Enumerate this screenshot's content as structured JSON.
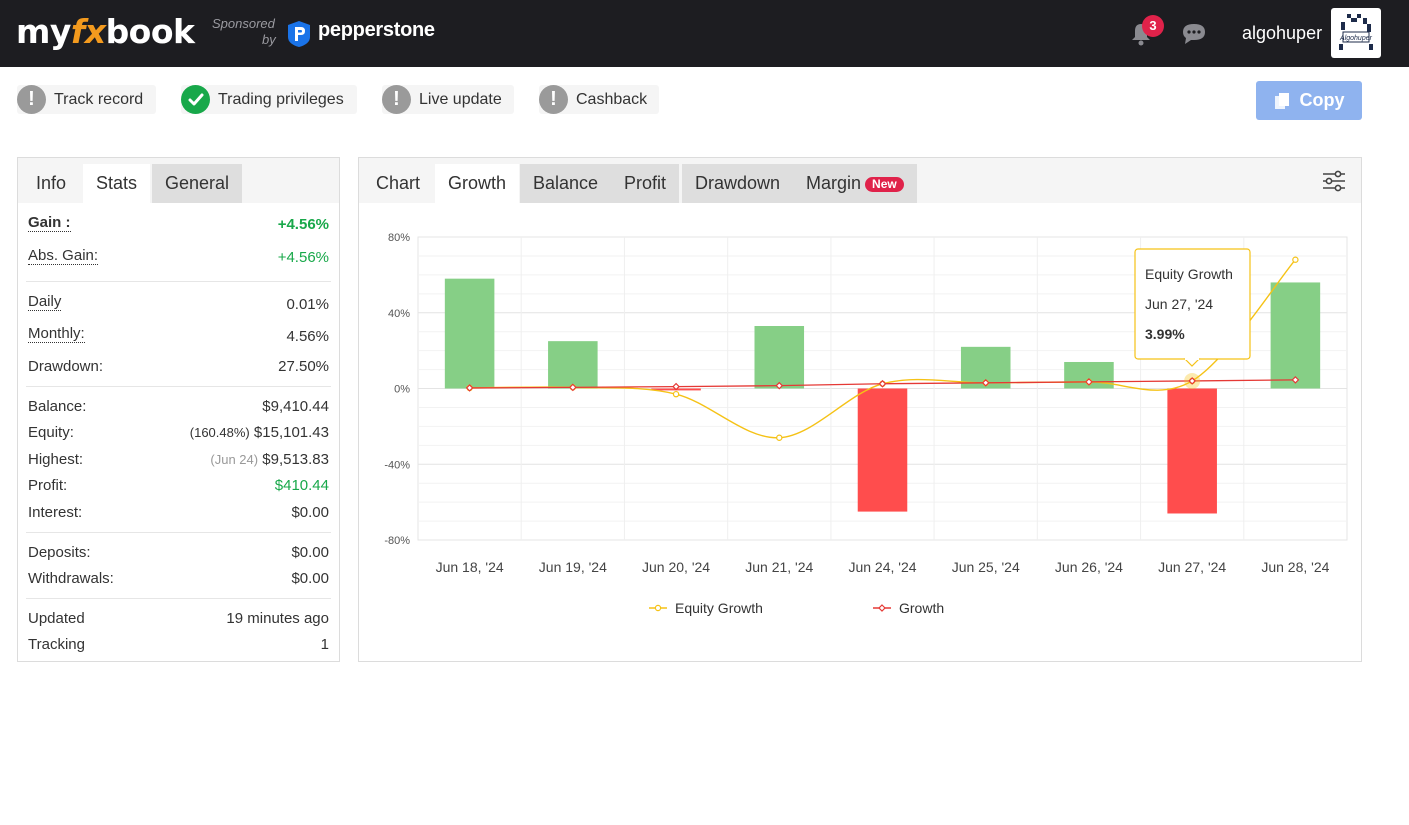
{
  "header": {
    "logo_left": "my",
    "logo_mid": "fx",
    "logo_right": "book",
    "sponsored": "Sponsored",
    "by": "by",
    "sponsor_name": "pepperstone",
    "notification_count": "3",
    "username": "algohuper",
    "avatar_text": "Algohuper"
  },
  "status": {
    "items": [
      {
        "label": "Track record",
        "icon": "exclamation-icon"
      },
      {
        "label": "Trading privileges",
        "icon": "check-icon"
      },
      {
        "label": "Live update",
        "icon": "exclamation-icon"
      },
      {
        "label": "Cashback",
        "icon": "exclamation-icon"
      }
    ],
    "copy_label": "Copy"
  },
  "left_panel": {
    "tabs": [
      "Info",
      "Stats",
      "General"
    ],
    "active_tab": "Stats",
    "gain_label": "Gain :",
    "gain_value": "+4.56%",
    "abs_gain_label": "Abs. Gain:",
    "abs_gain_value": "+4.56%",
    "daily_label": "Daily",
    "daily_value": "0.01%",
    "monthly_label": "Monthly:",
    "monthly_value": "4.56%",
    "drawdown_label": "Drawdown:",
    "drawdown_value": "27.50%",
    "balance_label": "Balance:",
    "balance_value": "$9,410.44",
    "equity_label": "Equity:",
    "equity_pct": "(160.48%)",
    "equity_value": "$15,101.43",
    "highest_label": "Highest:",
    "highest_date": "(Jun 24)",
    "highest_value": "$9,513.83",
    "profit_label": "Profit:",
    "profit_value": "$410.44",
    "interest_label": "Interest:",
    "interest_value": "$0.00",
    "deposits_label": "Deposits:",
    "deposits_value": "$0.00",
    "withdrawals_label": "Withdrawals:",
    "withdrawals_value": "$0.00",
    "updated_label": "Updated",
    "updated_value": "19 minutes ago",
    "tracking_label": "Tracking",
    "tracking_value": "1"
  },
  "chart_panel": {
    "tabs": [
      "Chart",
      "Growth",
      "Balance",
      "Profit",
      "Drawdown",
      "Margin"
    ],
    "active_tab": "Growth",
    "new_badge": "New",
    "tooltip": {
      "title": "Equity Growth",
      "date": "Jun 27, '24",
      "value": "3.99%"
    }
  },
  "chart_data": {
    "type": "bar",
    "categories": [
      "Jun 18, '24",
      "Jun 19, '24",
      "Jun 20, '24",
      "Jun 21, '24",
      "Jun 24, '24",
      "Jun 25, '24",
      "Jun 26, '24",
      "Jun 27, '24",
      "Jun 28, '24"
    ],
    "bars": [
      58,
      25,
      -1,
      33,
      -65,
      22,
      14,
      -66,
      56
    ],
    "series": [
      {
        "name": "Equity Growth",
        "type": "line",
        "values": [
          0.3,
          0.6,
          -3,
          -26,
          2.5,
          3,
          3.5,
          3.99,
          68
        ]
      },
      {
        "name": "Growth",
        "type": "line",
        "values": [
          0.3,
          0.6,
          1.0,
          1.5,
          2.5,
          3,
          3.5,
          4.0,
          4.56
        ]
      }
    ],
    "yticks": [
      "80%",
      "40%",
      "0%",
      "-40%",
      "-80%"
    ],
    "ylim": [
      -80,
      80
    ],
    "grid": true,
    "legend": "bottom",
    "colors": {
      "positive_bar": "#86cf86",
      "negative_bar": "#ff4d4d",
      "equity_line": "#f5c216",
      "growth_line": "#e53935"
    }
  }
}
